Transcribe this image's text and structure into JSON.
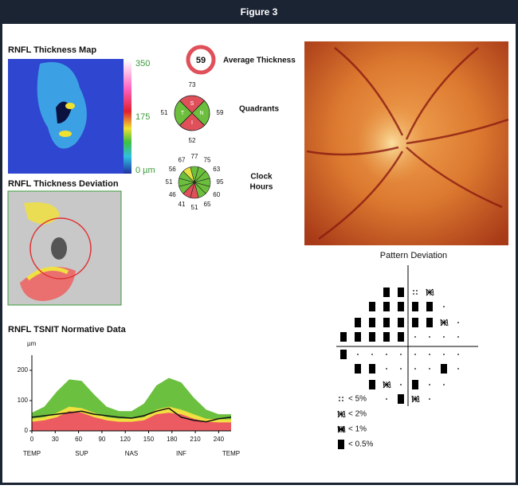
{
  "header": {
    "title": "Figure 3"
  },
  "thickness_map": {
    "title": "RNFL Thickness Map",
    "scale_labels": [
      "350",
      "175",
      "0 µm"
    ]
  },
  "average": {
    "value": 59,
    "label": "Average Thickness"
  },
  "quadrants": {
    "label": "Quadrants",
    "letters": [
      "S",
      "N",
      "I",
      "T"
    ],
    "values": [
      73,
      59,
      52,
      51
    ],
    "colors": [
      "#e0505a",
      "#6cbf3c",
      "#e0505a",
      "#6cbf3c"
    ]
  },
  "clock_hours": {
    "label": [
      "Clock",
      "Hours"
    ],
    "values": [
      77,
      75,
      63,
      95,
      60,
      65,
      51,
      41,
      46,
      51,
      56,
      67
    ],
    "colors": [
      "#6cbf3c",
      "#6cbf3c",
      "#6cbf3c",
      "#6cbf3c",
      "#6cbf3c",
      "#6cbf3c",
      "#e0505a",
      "#e0505a",
      "#6cbf3c",
      "#6cbf3c",
      "#6cbf3c",
      "#e8e040"
    ]
  },
  "deviation": {
    "title": "RNFL Thickness Deviation"
  },
  "tsnit": {
    "type": "area",
    "title": "RNFL TSNIT Normative Data",
    "y_unit": "µm",
    "x": [
      0,
      16,
      32,
      48,
      64,
      80,
      96,
      112,
      128,
      144,
      160,
      176,
      192,
      208,
      224,
      240,
      256
    ],
    "xlim": [
      0,
      256
    ],
    "ylim": [
      0,
      250
    ],
    "xticks": [
      0,
      30,
      60,
      90,
      120,
      150,
      180,
      210,
      240
    ],
    "yticks": [
      0,
      100,
      200
    ],
    "regions": [
      "TEMP",
      "SUP",
      "NAS",
      "INF",
      "TEMP"
    ],
    "bands": [
      {
        "color": "#6cc040",
        "values": [
          60,
          80,
          130,
          170,
          165,
          120,
          80,
          65,
          65,
          90,
          150,
          175,
          160,
          110,
          70,
          55,
          55
        ]
      },
      {
        "color": "#f0e040",
        "values": [
          40,
          45,
          60,
          80,
          75,
          60,
          45,
          40,
          40,
          45,
          70,
          80,
          70,
          55,
          40,
          38,
          38
        ]
      },
      {
        "color": "#ec5a62",
        "values": [
          30,
          35,
          45,
          65,
          60,
          45,
          35,
          30,
          30,
          35,
          55,
          60,
          55,
          40,
          30,
          28,
          28
        ]
      }
    ],
    "measured": {
      "color": "#111111",
      "values": [
        45,
        50,
        55,
        60,
        65,
        55,
        50,
        45,
        42,
        50,
        65,
        75,
        45,
        35,
        30,
        40,
        45
      ]
    }
  },
  "pattern_deviation": {
    "title": "Pattern Deviation",
    "grid": [
      [
        4,
        4,
        1,
        2
      ],
      [
        4,
        4,
        4,
        4,
        4,
        0
      ],
      [
        4,
        4,
        4,
        4,
        4,
        4,
        2,
        0
      ],
      [
        4,
        4,
        4,
        4,
        4,
        0,
        0,
        0,
        0
      ],
      [
        4,
        0,
        0,
        0,
        0,
        0,
        0,
        0,
        0
      ],
      [
        4,
        4,
        0,
        0,
        0,
        0,
        4,
        0
      ],
      [
        4,
        2,
        0,
        4,
        0,
        0
      ],
      [
        0,
        4,
        2,
        0
      ]
    ],
    "legend": [
      {
        "code": 1,
        "label": "< 5%"
      },
      {
        "code": 2,
        "label": "< 2%"
      },
      {
        "code": 3,
        "label": "< 1%"
      },
      {
        "code": 4,
        "label": "< 0.5%"
      }
    ]
  }
}
